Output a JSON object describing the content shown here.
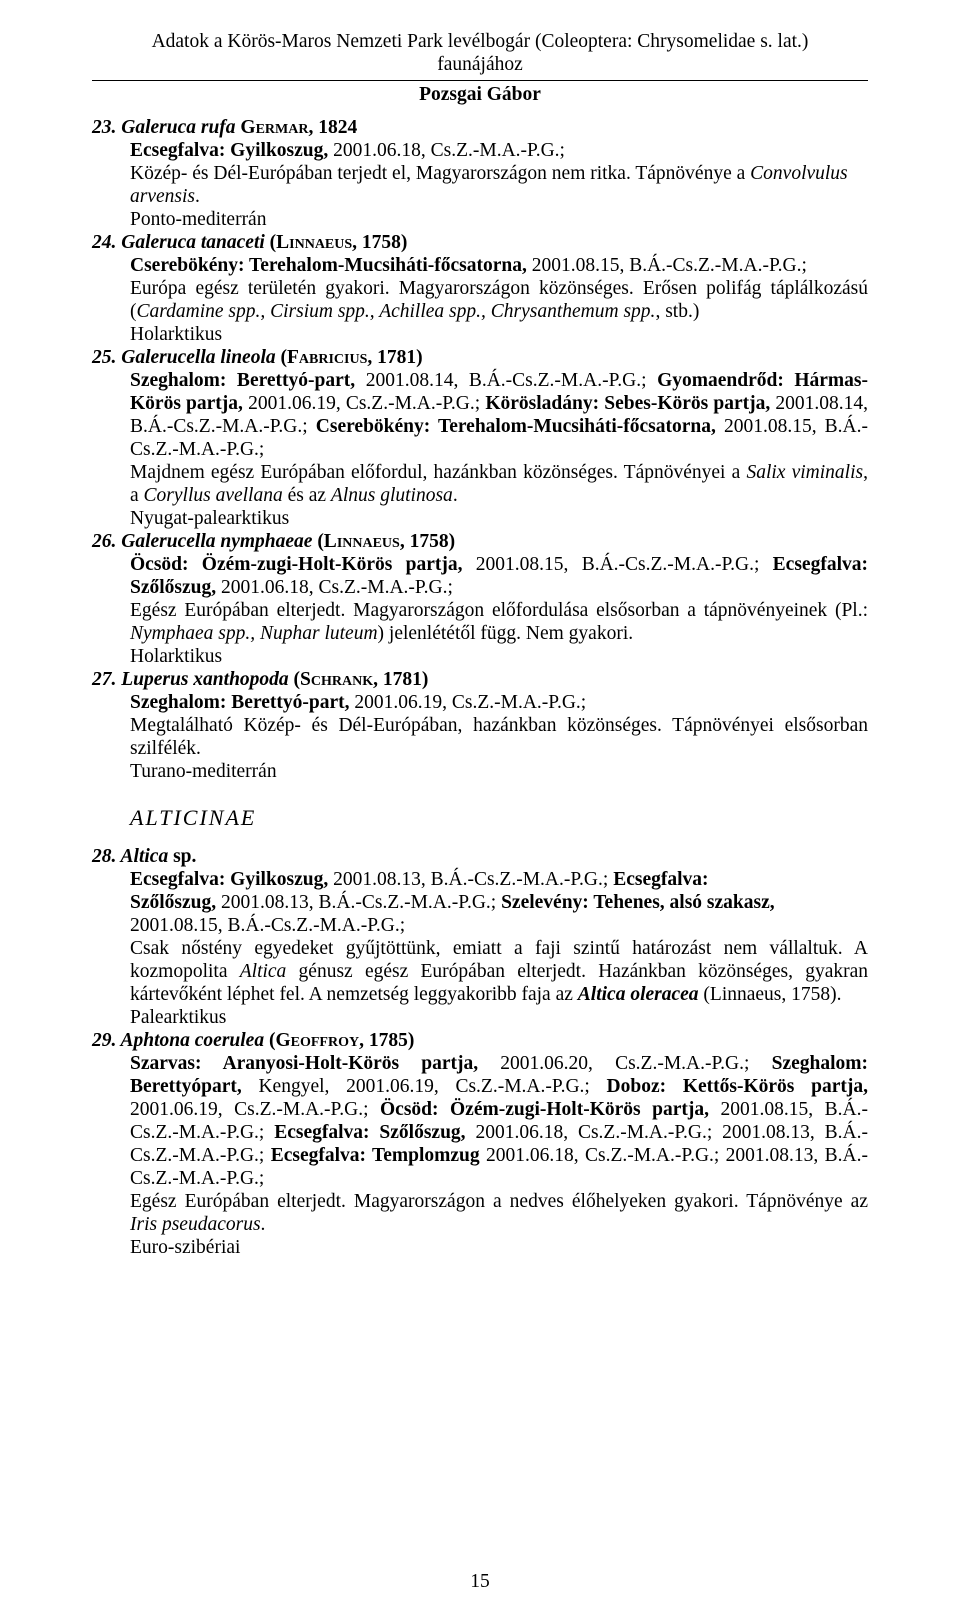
{
  "header": {
    "title_line1": "Adatok a Körös-Maros Nemzeti Park levélbogár (Coleoptera: Chrysomelidae s. lat.)",
    "title_line2": "faunájához",
    "author": "Pozsgai Gábor"
  },
  "e23": {
    "num": "23. ",
    "species": "Galeruca rufa",
    "auth": " Germar, ",
    "year": "1824",
    "loc": "Ecsegfalva: Gyilkoszug,",
    "loc_rest": " 2001.06.18, Cs.Z.-M.A.-P.G.;",
    "desc_a": "Közép- és Dél-Európában terjedt el, Magyarországon nem ritka. Tápnövénye a ",
    "desc_b": "Convolvulus arvensis",
    "desc_c": ".",
    "range": "Ponto-mediterrán"
  },
  "e24": {
    "num": "24. ",
    "species": "Galeruca tanaceti",
    "auth": " (Linnaeus, ",
    "year": "1758)",
    "loc": "Cserebökény: Terehalom-Mucsiháti-főcsatorna,",
    "loc_rest": " 2001.08.15, B.Á.-Cs.Z.-M.A.-P.G.;",
    "desc_a": "Európa egész területén gyakori. Magyarországon közönséges. Erősen polifág táplálkozású (",
    "desc_b": "Cardamine spp., Cirsium spp., Achillea spp., Chrysanthemum spp.",
    "desc_c": ", stb.)",
    "range": "Holarktikus"
  },
  "e25": {
    "num": "25. ",
    "species": "Galerucella lineola",
    "auth": " (Fabricius, ",
    "year": "1781)",
    "l1a": "Szeghalom: Berettyó-part,",
    "l1b": " 2001.08.14, B.Á.-Cs.Z.-M.A.-P.G.; ",
    "l1c": "Gyomaendrőd: Hármas-Körös partja,",
    "l1d": " 2001.06.19, Cs.Z.-M.A.-P.G.; ",
    "l1e": "Körösladány: Sebes-Körös partja,",
    "l1f": " 2001.08.14, B.Á.-Cs.Z.-M.A.-P.G.; ",
    "l1g": "Cserebökény: Terehalom-Mucsiháti-főcsatorna,",
    "l1h": " 2001.08.15, B.Á.-Cs.Z.-M.A.-P.G.;",
    "desc_a": "Majdnem egész Európában előfordul, hazánkban közönséges. Tápnövényei a ",
    "desc_b": "Salix viminalis",
    "desc_c": ", a ",
    "desc_d": "Coryllus avellana",
    "desc_e": " és az ",
    "desc_f": "Alnus glutinosa",
    "desc_g": ".",
    "range": "Nyugat-palearktikus"
  },
  "e26": {
    "num": "26. ",
    "species": "Galerucella nymphaeae",
    "auth": " (Linnaeus, ",
    "year": "1758)",
    "l1a": "Öcsöd: Özém-zugi-Holt-Körös partja,",
    "l1b": " 2001.08.15, B.Á.-Cs.Z.-M.A.-P.G.; ",
    "l1c": "Ecsegfalva: Szőlőszug,",
    "l1d": " 2001.06.18, Cs.Z.-M.A.-P.G.;",
    "desc_a": "Egész Európában elterjedt. Magyarországon előfordulása elsősorban a tápnövényeinek (Pl.: ",
    "desc_b": "Nymphaea spp., Nuphar luteum",
    "desc_c": ") jelenlététől függ. Nem gyakori.",
    "range": "Holarktikus"
  },
  "e27": {
    "num": "27. ",
    "species": "Luperus xanthopoda",
    "auth": " (Schrank, ",
    "year": "1781)",
    "loc": "Szeghalom: Berettyó-part,",
    "loc_rest": " 2001.06.19, Cs.Z.-M.A.-P.G.;",
    "desc": "Megtalálható Közép- és Dél-Európában, hazánkban közönséges. Tápnövényei elsősorban szilfélék.",
    "range": "Turano-mediterrán"
  },
  "subfam": "ALTICINAE",
  "e28": {
    "num": "28. ",
    "species": "Altica",
    "sp": " sp.",
    "l1a": "Ecsegfalva: Gyilkoszug,",
    "l1b": " 2001.08.13, B.Á.-Cs.Z.-M.A.-P.G.; ",
    "l1c": "Ecsegfalva:",
    "l2a": "Szőlőszug,",
    "l2b": " 2001.08.13, B.Á.-Cs.Z.-M.A.-P.G.; ",
    "l2c": "Szelevény: Tehenes, alsó szakasz,",
    "l2d": " 2001.08.15, B.Á.-Cs.Z.-M.A.-P.G.;",
    "desc_a": "Csak nőstény egyedeket gyűjtöttünk, emiatt a faji szintű határozást nem vállaltuk. A kozmopolita ",
    "desc_b": "Altica",
    "desc_c": " génusz egész Európában elterjedt. Hazánkban közönséges, gyakran kártevőként léphet fel. A nemzetség leggyakoribb faja az ",
    "desc_d": "Altica oleracea",
    "desc_e": " (Linnaeus, 1758).",
    "range": "Palearktikus"
  },
  "e29": {
    "num": "29. ",
    "species": "Aphtona coerulea",
    "auth": " (Geoffroy, ",
    "year": "1785)",
    "l1a": "Szarvas: Aranyosi-Holt-Körös partja,",
    "l1b": " 2001.06.20, Cs.Z.-M.A.-P.G.; ",
    "l1c": "Szeghalom: Berettyópart,",
    "l1d": " Kengyel, 2001.06.19, Cs.Z.-M.A.-P.G.; ",
    "l1e": "Doboz: Kettős-Körös partja,",
    "l1f": " 2001.06.19, Cs.Z.-M.A.-P.G.; ",
    "l1g": "Öcsöd: Özém-zugi-Holt-Körös partja,",
    "l1h": " 2001.08.15, B.Á.-Cs.Z.-M.A.-P.G.; ",
    "l1i": "Ecsegfalva: Szőlőszug,",
    "l1j": " 2001.06.18, Cs.Z.-M.A.-P.G.; 2001.08.13, B.Á.-Cs.Z.-M.A.-P.G.; ",
    "l1k": "Ecsegfalva: Templomzug",
    "l1l": " 2001.06.18, Cs.Z.-M.A.-P.G.; 2001.08.13, B.Á.-Cs.Z.-M.A.-P.G.;",
    "desc_a": "Egész Európában elterjedt. Magyarországon a nedves élőhelyeken gyakori. Tápnövénye az ",
    "desc_b": "Iris pseudacorus",
    "desc_c": ".",
    "range": "Euro-szibériai"
  },
  "pagenum": "15"
}
